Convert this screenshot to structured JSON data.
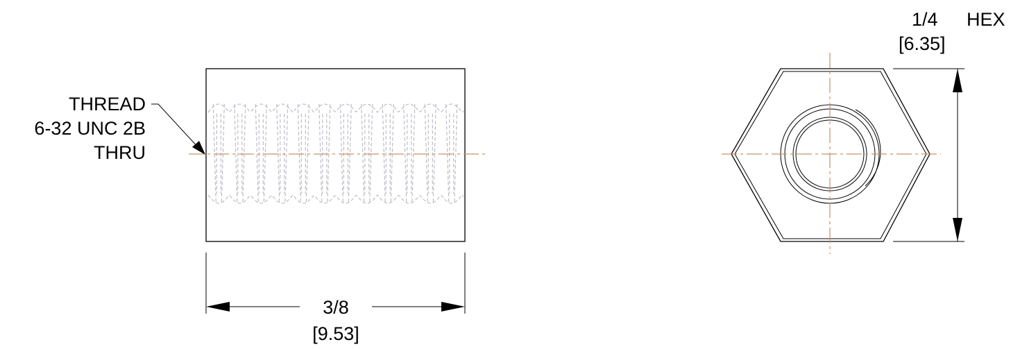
{
  "side_view": {
    "thread_callout": {
      "line1": "THREAD",
      "line2": "6-32 UNC 2B",
      "line3": "THRU"
    },
    "length_dimension": {
      "fraction": "3/8",
      "metric": "[9.53]"
    }
  },
  "end_view": {
    "hex_dimension": {
      "fraction": "1/4",
      "type": "HEX",
      "metric": "[6.35]"
    }
  },
  "colors": {
    "outline": "#000000",
    "centerline": "#c8906a",
    "hidden_thread": "#b8b8c2",
    "background": "#ffffff"
  }
}
